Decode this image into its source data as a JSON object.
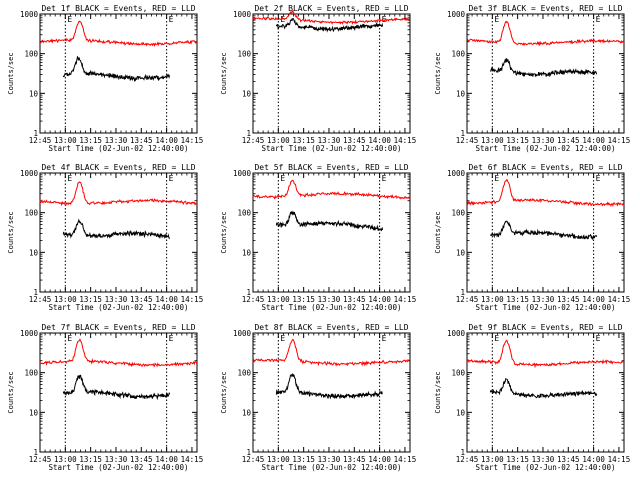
{
  "figure": {
    "description_shown": false
  },
  "chart_data": [
    {
      "type": "line",
      "title": "Det 1f BLACK = Events, RED = LLD",
      "xlabel": "Start Time (02-Jun-02 12:40:00)",
      "ylabel": "Counts/sec",
      "yscale": "log",
      "ylim": [
        1,
        1000
      ],
      "yticks": [
        "1",
        "10",
        "100",
        "1000"
      ],
      "xlim": [
        12.75,
        14.3
      ],
      "xticks": [
        "12:45",
        "13:00",
        "13:15",
        "13:30",
        "13:45",
        "14:00",
        "14:15"
      ],
      "markers": [
        {
          "x": 13.0,
          "label": "E"
        },
        {
          "x": 14.0,
          "label": "E"
        }
      ],
      "series": [
        {
          "name": "Events",
          "color": "#000000",
          "t_start": 12.98,
          "t_end": 14.03,
          "base": 30,
          "trend": -0.15,
          "peak_t": 13.13,
          "peak": 75
        },
        {
          "name": "LLD",
          "color": "#ff0000",
          "t_start": 12.75,
          "t_end": 14.3,
          "base": 200,
          "trend": -0.05,
          "peak_t": 13.14,
          "peak": 650
        }
      ]
    },
    {
      "type": "line",
      "title": "Det 2f BLACK = Events, RED = LLD",
      "xlabel": "Start Time (02-Jun-02 12:40:00)",
      "ylabel": "Counts/sec",
      "yscale": "log",
      "ylim": [
        1,
        1000
      ],
      "yticks": [
        "1",
        "10",
        "100",
        "1000"
      ],
      "xlim": [
        12.75,
        14.3
      ],
      "xticks": [
        "12:45",
        "13:00",
        "13:15",
        "13:30",
        "13:45",
        "14:00",
        "14:15"
      ],
      "markers": [
        {
          "x": 13.0,
          "label": "E"
        },
        {
          "x": 14.0,
          "label": "E"
        }
      ],
      "series": [
        {
          "name": "Events",
          "color": "#000000",
          "t_start": 12.98,
          "t_end": 14.03,
          "base": 450,
          "trend": 0.05,
          "peak_t": 13.14,
          "peak": 650
        },
        {
          "name": "LLD",
          "color": "#ff0000",
          "t_start": 12.75,
          "t_end": 14.3,
          "base": 700,
          "trend": -0.05,
          "peak_t": 13.14,
          "peak": 1100
        }
      ]
    },
    {
      "type": "line",
      "title": "Det 3f BLACK = Events, RED = LLD",
      "xlabel": "Start Time (02-Jun-02 12:40:00)",
      "ylabel": "Counts/sec",
      "yscale": "log",
      "ylim": [
        1,
        1000
      ],
      "yticks": [
        "1",
        "10",
        "100",
        "1000"
      ],
      "xlim": [
        12.75,
        14.3
      ],
      "xticks": [
        "12:45",
        "13:00",
        "13:15",
        "13:30",
        "13:45",
        "14:00",
        "14:15"
      ],
      "markers": [
        {
          "x": 13.0,
          "label": "E"
        },
        {
          "x": 14.0,
          "label": "E"
        }
      ],
      "series": [
        {
          "name": "Events",
          "color": "#000000",
          "t_start": 12.98,
          "t_end": 14.03,
          "base": 35,
          "trend": -0.1,
          "peak_t": 13.14,
          "peak": 70
        },
        {
          "name": "LLD",
          "color": "#ff0000",
          "t_start": 12.75,
          "t_end": 14.3,
          "base": 200,
          "trend": -0.05,
          "peak_t": 13.14,
          "peak": 650
        }
      ]
    },
    {
      "type": "line",
      "title": "Det 4f BLACK = Events, RED = LLD",
      "xlabel": "Start Time (02-Jun-02 12:40:00)",
      "ylabel": "Counts/sec",
      "yscale": "log",
      "ylim": [
        1,
        1000
      ],
      "yticks": [
        "1",
        "10",
        "100",
        "1000"
      ],
      "xlim": [
        12.75,
        14.3
      ],
      "xticks": [
        "12:45",
        "13:00",
        "13:15",
        "13:30",
        "13:45",
        "14:00",
        "14:15"
      ],
      "markers": [
        {
          "x": 13.0,
          "label": "E"
        },
        {
          "x": 14.0,
          "label": "E"
        }
      ],
      "series": [
        {
          "name": "Events",
          "color": "#000000",
          "t_start": 12.98,
          "t_end": 14.03,
          "base": 30,
          "trend": -0.15,
          "peak_t": 13.14,
          "peak": 65
        },
        {
          "name": "LLD",
          "color": "#ff0000",
          "t_start": 12.75,
          "t_end": 14.3,
          "base": 190,
          "trend": -0.05,
          "peak_t": 13.14,
          "peak": 600
        }
      ]
    },
    {
      "type": "line",
      "title": "Det 5f BLACK = Events, RED = LLD",
      "xlabel": "Start Time (02-Jun-02 12:40:00)",
      "ylabel": "Counts/sec",
      "yscale": "log",
      "ylim": [
        1,
        1000
      ],
      "yticks": [
        "1",
        "10",
        "100",
        "1000"
      ],
      "xlim": [
        12.75,
        14.3
      ],
      "xticks": [
        "12:45",
        "13:00",
        "13:15",
        "13:30",
        "13:45",
        "14:00",
        "14:15"
      ],
      "markers": [
        {
          "x": 13.0,
          "label": "E"
        },
        {
          "x": 14.0,
          "label": "E"
        }
      ],
      "series": [
        {
          "name": "Events",
          "color": "#000000",
          "t_start": 12.98,
          "t_end": 14.03,
          "base": 55,
          "trend": -0.2,
          "peak_t": 13.14,
          "peak": 110
        },
        {
          "name": "LLD",
          "color": "#ff0000",
          "t_start": 12.75,
          "t_end": 14.3,
          "base": 280,
          "trend": -0.05,
          "peak_t": 13.14,
          "peak": 650
        }
      ]
    },
    {
      "type": "line",
      "title": "Det 6f BLACK = Events, RED = LLD",
      "xlabel": "Start Time (02-Jun-02 12:40:00)",
      "ylabel": "Counts/sec",
      "yscale": "log",
      "ylim": [
        1,
        1000
      ],
      "yticks": [
        "1",
        "10",
        "100",
        "1000"
      ],
      "xlim": [
        12.75,
        14.3
      ],
      "xticks": [
        "12:45",
        "13:00",
        "13:15",
        "13:30",
        "13:45",
        "14:00",
        "14:15"
      ],
      "markers": [
        {
          "x": 13.0,
          "label": "E"
        },
        {
          "x": 14.0,
          "label": "E"
        }
      ],
      "series": [
        {
          "name": "Events",
          "color": "#000000",
          "t_start": 12.98,
          "t_end": 14.03,
          "base": 30,
          "trend": -0.1,
          "peak_t": 13.14,
          "peak": 60
        },
        {
          "name": "LLD",
          "color": "#ff0000",
          "t_start": 12.75,
          "t_end": 14.3,
          "base": 190,
          "trend": -0.05,
          "peak_t": 13.14,
          "peak": 650
        }
      ]
    },
    {
      "type": "line",
      "title": "Det 7f BLACK = Events, RED = LLD",
      "xlabel": "Start Time (02-Jun-02 12:40:00)",
      "ylabel": "Counts/sec",
      "yscale": "log",
      "ylim": [
        1,
        1000
      ],
      "yticks": [
        "1",
        "10",
        "100",
        "1000"
      ],
      "xlim": [
        12.75,
        14.3
      ],
      "xticks": [
        "12:45",
        "13:00",
        "13:15",
        "13:30",
        "13:45",
        "14:00",
        "14:15"
      ],
      "markers": [
        {
          "x": 13.0,
          "label": "E"
        },
        {
          "x": 14.0,
          "label": "E"
        }
      ],
      "series": [
        {
          "name": "Events",
          "color": "#000000",
          "t_start": 12.98,
          "t_end": 14.03,
          "base": 30,
          "trend": -0.1,
          "peak_t": 13.14,
          "peak": 80
        },
        {
          "name": "LLD",
          "color": "#ff0000",
          "t_start": 12.75,
          "t_end": 14.3,
          "base": 180,
          "trend": -0.05,
          "peak_t": 13.14,
          "peak": 650
        }
      ]
    },
    {
      "type": "line",
      "title": "Det 8f BLACK = Events, RED = LLD",
      "xlabel": "Start Time (02-Jun-02 12:40:00)",
      "ylabel": "Counts/sec",
      "yscale": "log",
      "ylim": [
        1,
        1000
      ],
      "yticks": [
        "1",
        "10",
        "100",
        "1000"
      ],
      "xlim": [
        12.75,
        14.3
      ],
      "xticks": [
        "12:45",
        "13:00",
        "13:15",
        "13:30",
        "13:45",
        "14:00",
        "14:15"
      ],
      "markers": [
        {
          "x": 13.0,
          "label": "E"
        },
        {
          "x": 14.0,
          "label": "E"
        }
      ],
      "series": [
        {
          "name": "Events",
          "color": "#000000",
          "t_start": 12.98,
          "t_end": 14.03,
          "base": 30,
          "trend": -0.1,
          "peak_t": 13.14,
          "peak": 85
        },
        {
          "name": "LLD",
          "color": "#ff0000",
          "t_start": 12.75,
          "t_end": 14.3,
          "base": 190,
          "trend": -0.05,
          "peak_t": 13.14,
          "peak": 650
        }
      ]
    },
    {
      "type": "line",
      "title": "Det 9f BLACK = Events, RED = LLD",
      "xlabel": "Start Time (02-Jun-02 12:40:00)",
      "ylabel": "Counts/sec",
      "yscale": "log",
      "ylim": [
        1,
        1000
      ],
      "yticks": [
        "1",
        "10",
        "100",
        "1000"
      ],
      "xlim": [
        12.75,
        14.3
      ],
      "xticks": [
        "12:45",
        "13:00",
        "13:15",
        "13:30",
        "13:45",
        "14:00",
        "14:15"
      ],
      "markers": [
        {
          "x": 13.0,
          "label": "E"
        },
        {
          "x": 14.0,
          "label": "E"
        }
      ],
      "series": [
        {
          "name": "Events",
          "color": "#000000",
          "t_start": 12.98,
          "t_end": 14.03,
          "base": 30,
          "trend": -0.1,
          "peak_t": 13.14,
          "peak": 65
        },
        {
          "name": "LLD",
          "color": "#ff0000",
          "t_start": 12.75,
          "t_end": 14.3,
          "base": 180,
          "trend": -0.05,
          "peak_t": 13.14,
          "peak": 650
        }
      ]
    }
  ]
}
